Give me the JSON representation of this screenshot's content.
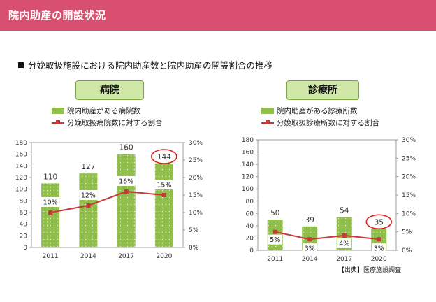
{
  "header": {
    "title": "院内助産の開設状況"
  },
  "subtitle": "分娩取扱施設における院内助産数と院内助産の開設割合の推移",
  "source": "【出典】医療施設調査",
  "colors": {
    "header": "#d94f6f",
    "bar": "#8fbf4a",
    "line": "#c8383a",
    "highlight": "#e01e1e"
  },
  "chart_data": [
    {
      "type": "bar",
      "panel_label": "病院",
      "categories": [
        "2011",
        "2014",
        "2017",
        "2020"
      ],
      "series": [
        {
          "name": "院内助産がある病院数",
          "type": "bar",
          "axis": "left",
          "values": [
            110,
            127,
            160,
            144
          ]
        },
        {
          "name": "分娩取扱病院数に対する割合",
          "type": "line",
          "axis": "right",
          "values": [
            10,
            12,
            16,
            15
          ],
          "labels": [
            "10%",
            "12%",
            "16%",
            "15%"
          ]
        }
      ],
      "y_left": {
        "min": 0,
        "max": 180,
        "step": 20,
        "ticks": [
          "0",
          "20",
          "40",
          "60",
          "80",
          "100",
          "120",
          "140",
          "160",
          "180"
        ]
      },
      "y_right": {
        "min": 0,
        "max": 30,
        "step": 5,
        "ticks": [
          "0%",
          "5%",
          "10%",
          "15%",
          "20%",
          "25%",
          "30%"
        ]
      },
      "highlight_category": "2020",
      "legend_position": "top"
    },
    {
      "type": "bar",
      "panel_label": "診療所",
      "categories": [
        "2011",
        "2014",
        "2017",
        "2020"
      ],
      "series": [
        {
          "name": "院内助産がある診療所数",
          "type": "bar",
          "axis": "left",
          "values": [
            50,
            39,
            54,
            35
          ]
        },
        {
          "name": "分娩取扱診療所数に対する割合",
          "type": "line",
          "axis": "right",
          "values": [
            5,
            3,
            4,
            3
          ],
          "labels": [
            "5%",
            "3%",
            "4%",
            "3%"
          ]
        }
      ],
      "y_left": {
        "min": 0,
        "max": 180,
        "step": 20,
        "ticks": [
          "0",
          "20",
          "40",
          "60",
          "80",
          "100",
          "120",
          "140",
          "160",
          "180"
        ]
      },
      "y_right": {
        "min": 0,
        "max": 30,
        "step": 5,
        "ticks": [
          "0%",
          "5%",
          "10%",
          "15%",
          "20%",
          "25%",
          "30%"
        ]
      },
      "highlight_category": "2020",
      "legend_position": "top"
    }
  ]
}
